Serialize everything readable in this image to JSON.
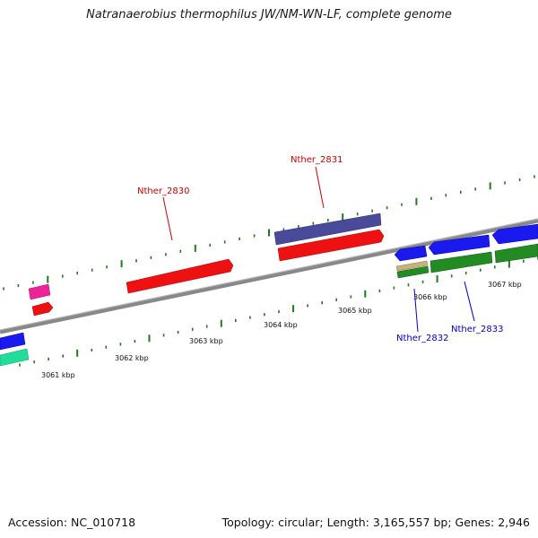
{
  "title": "Natranaerobius thermophilus JW/NM-WN-LF, complete genome",
  "footer": {
    "accession": "Accession: NC_010718",
    "summary": "Topology: circular; Length: 3,165,557 bp; Genes: 2,946"
  },
  "scale_labels": [
    "3061 kbp",
    "3062 kbp",
    "3063 kbp",
    "3064 kbp",
    "3065 kbp",
    "3066 kbp",
    "3067 kbp"
  ],
  "gene_labels": [
    {
      "text": "Nther_2830",
      "color": "#cc0000"
    },
    {
      "text": "Nther_2831",
      "color": "#cc0000"
    },
    {
      "text": "Nther_2832",
      "color": "#0000cc"
    },
    {
      "text": "Nther_2833",
      "color": "#0000cc"
    }
  ],
  "colors": {
    "backbone": "#888888",
    "tick": "#1e7a1e",
    "red": "#ee1111",
    "purple": "#4a4a9a",
    "blue": "#1a1aee",
    "green": "#228b22",
    "pink": "#ee2299",
    "teal": "#22dd99",
    "tan": "#c8b27a"
  }
}
